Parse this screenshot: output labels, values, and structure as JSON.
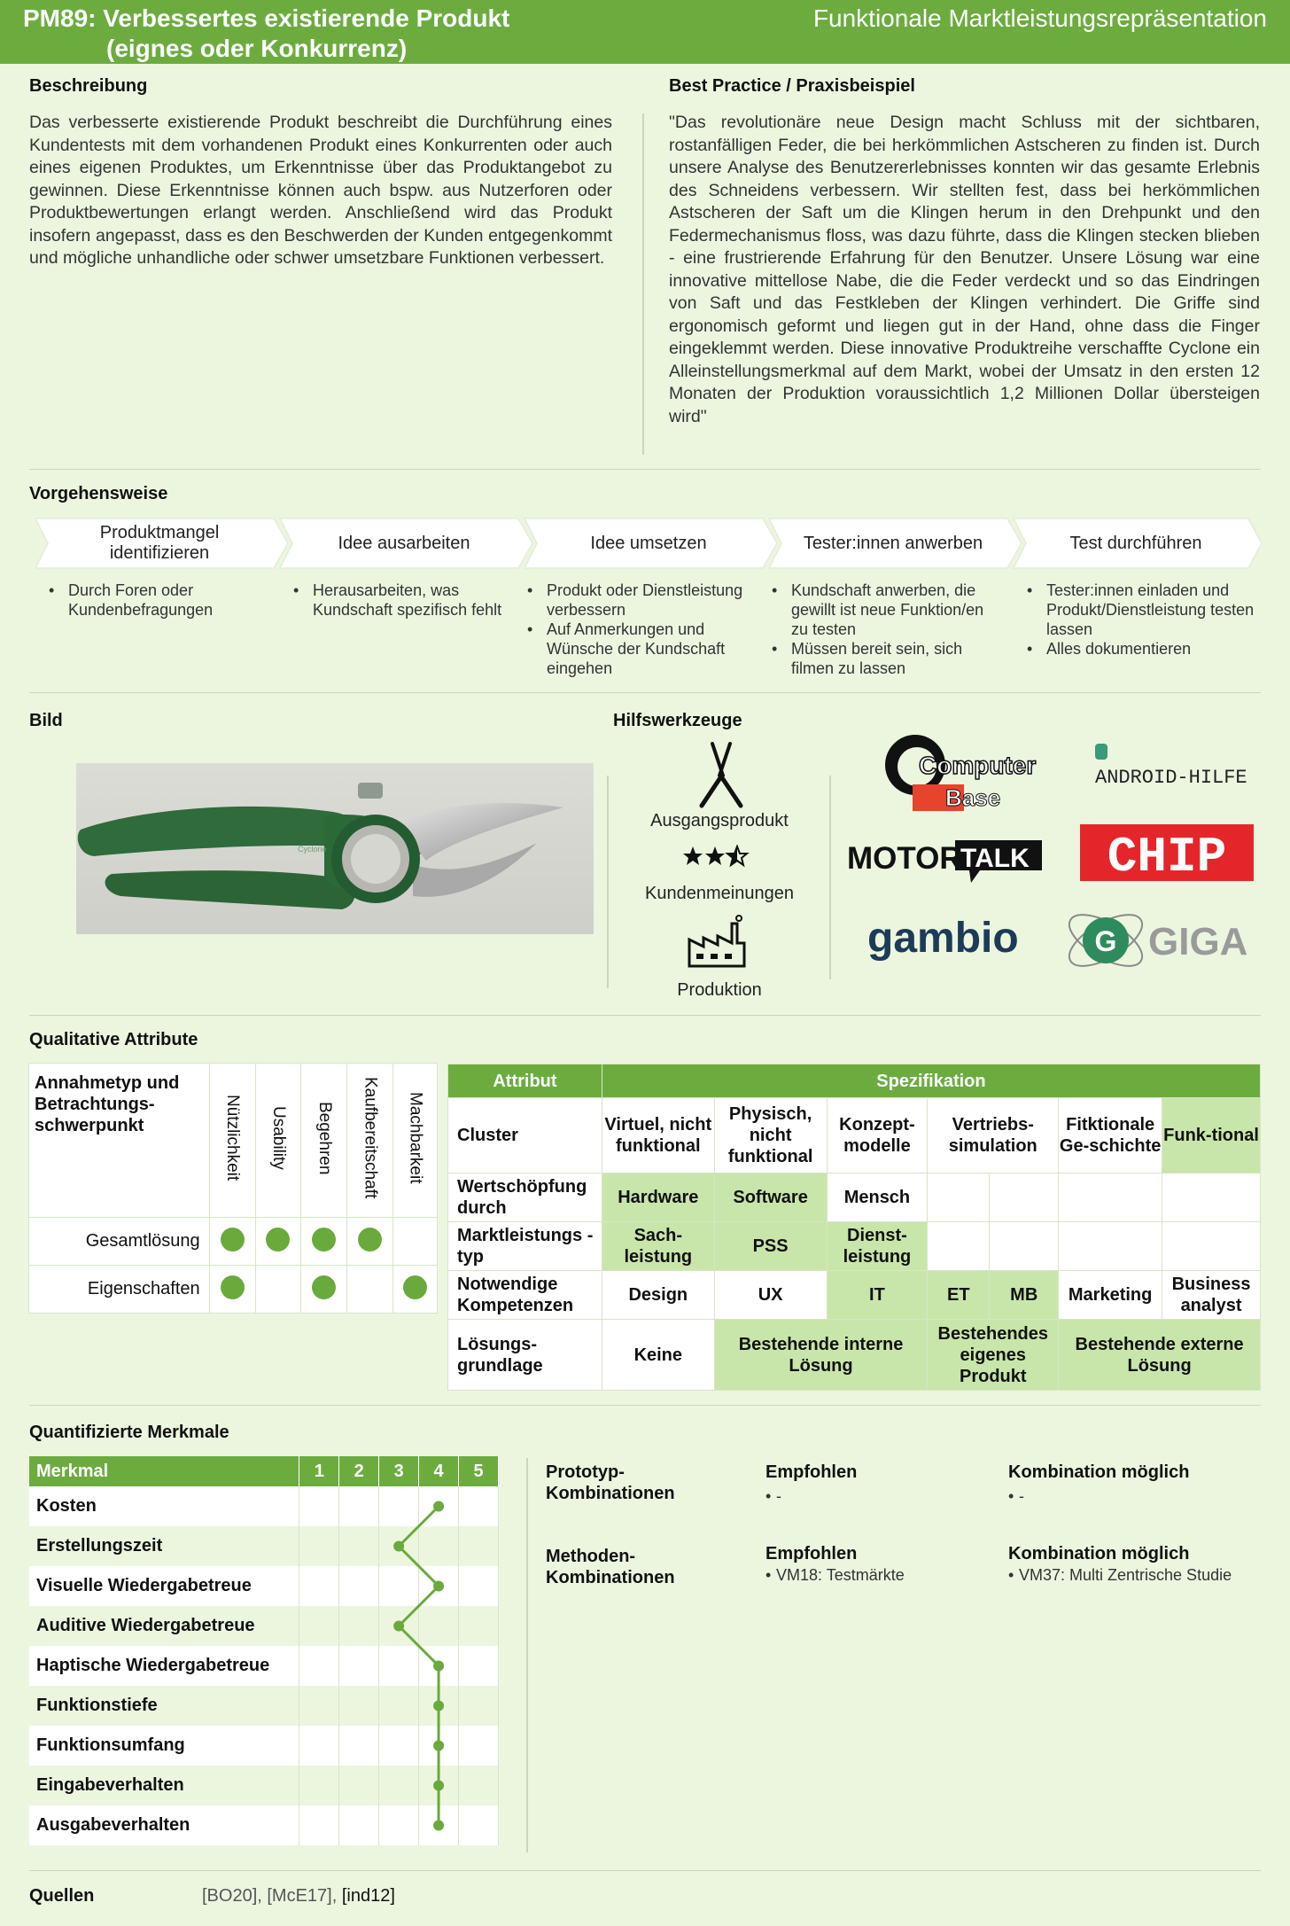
{
  "header": {
    "title": "PM89: Verbessertes existierende Produkt",
    "subtitle": "(eignes oder Konkurrenz)",
    "category": "Funktionale Marktleistungsrepräsentation"
  },
  "beschreibung": {
    "heading": "Beschreibung",
    "text": "Das verbesserte existierende Produkt beschreibt die Durchführung eines Kundentests mit dem vorhandenen Produkt eines Konkurrenten oder auch eines eigenen Produktes, um Erkenntnisse über das Produktangebot zu gewinnen. Diese Erkenntnisse können auch bspw. aus Nutzerforen oder Produktbewertungen erlangt werden. Anschließend wird das Produkt insofern angepasst, dass es den Beschwerden der Kunden entgegenkommt und mögliche unhandliche oder schwer umsetzbare Funktionen verbessert."
  },
  "best_practice": {
    "heading": "Best Practice / Praxisbeispiel",
    "text": "\"Das revolutionäre neue Design macht Schluss mit der sichtbaren, rostanfälligen Feder, die bei herkömmlichen Astscheren zu finden ist. Durch unsere Analyse des Benutzererlebnisses konnten wir das gesamte Erlebnis des Schneidens verbessern. Wir stellten fest, dass bei herkömmlichen Astscheren der Saft um die Klingen herum in den Drehpunkt und den Federmechanismus floss, was dazu führte, dass die Klingen stecken blieben - eine frustrierende Erfahrung für den Benutzer. Unsere Lösung war eine innovative mittellose Nabe, die die Feder verdeckt und so das Eindringen von Saft und das Festkleben der Klingen verhindert. Die Griffe sind ergonomisch geformt und liegen gut in der Hand, ohne dass die Finger eingeklemmt werden. Diese innovative Produktreihe verschaffte Cyclone ein Alleinstellungsmerkmal auf dem Markt, wobei der Umsatz in den ersten 12 Monaten der Produktion voraussichtlich 1,2 Millionen Dollar übersteigen wird\""
  },
  "vorgehensweise": {
    "heading": "Vorgehensweise",
    "steps": [
      {
        "title": "Produktmangel identifizieren",
        "bullets": [
          "Durch Foren oder Kundenbefragungen"
        ]
      },
      {
        "title": "Idee ausarbeiten",
        "bullets": [
          "Herausarbeiten, was Kundschaft spezifisch fehlt"
        ]
      },
      {
        "title": "Idee umsetzen",
        "bullets": [
          "Produkt oder Dienstleistung verbessern",
          "Auf Anmerkungen und Wünsche der Kundschaft eingehen"
        ]
      },
      {
        "title": "Tester:innen anwerben",
        "bullets": [
          "Kundschaft anwerben, die gewillt ist neue Funktion/en zu testen",
          "Müssen bereit sein, sich filmen zu lassen"
        ]
      },
      {
        "title": "Test durchführen",
        "bullets": [
          "Tester:innen einladen und Produkt/Dienstleistung testen lassen",
          "Alles dokumentieren"
        ]
      }
    ]
  },
  "bild": {
    "heading": "Bild",
    "logo_text": "Cyclone"
  },
  "hilfswerkzeuge": {
    "heading": "Hilfswerkzeuge",
    "items": [
      {
        "label": "Ausgangsprodukt",
        "icon": "pruning-shears-icon"
      },
      {
        "label": "Kundenmeinungen",
        "icon": "stars-rating-icon",
        "rating": 2.5
      },
      {
        "label": "Produktion",
        "icon": "factory-icon"
      }
    ],
    "logos": {
      "computerbase": [
        "Computer",
        "Base"
      ],
      "androidhilfe": "ANDROID-HILFE",
      "motortalk": [
        "MOTOR",
        "TALK"
      ],
      "chip": "CHIP",
      "gambio": "gambio",
      "giga": [
        "G",
        "GIGA"
      ]
    }
  },
  "qualitative": {
    "heading": "Qualitative Attribute",
    "corner": "Annahmetyp und Betrachtungs-schwerpunkt",
    "columns": [
      "Nützlichkeit",
      "Usability",
      "Begehren",
      "Kaufbereitschaft",
      "Machbarkeit"
    ],
    "rows": [
      {
        "label": "Gesamtlösung",
        "dots": [
          true,
          true,
          true,
          true,
          false
        ]
      },
      {
        "label": "Eigenschaften",
        "dots": [
          true,
          false,
          true,
          false,
          true
        ]
      }
    ]
  },
  "attribute": {
    "h_attr": "Attribut",
    "h_spec": "Spezifikation",
    "cluster": {
      "label": "Cluster",
      "items": [
        "Virtuel, nicht funktional",
        "Physisch, nicht funktional",
        "Konzept-modelle",
        "Vertriebs-simulation",
        "Fitktionale Ge-schichte",
        "Funk-tional"
      ]
    },
    "wertschoepfung": {
      "label": "Wertschöpfung durch",
      "items": [
        "Hardware",
        "Software",
        "Mensch"
      ]
    },
    "marktleistung": {
      "label": "Marktleistungs -typ",
      "items": [
        "Sach-leistung",
        "PSS",
        "Dienst-leistung"
      ]
    },
    "kompetenzen": {
      "label": "Notwendige Kompetenzen",
      "items": [
        "Design",
        "UX",
        "IT",
        "ET",
        "MB",
        "Marketing",
        "Business analyst"
      ]
    },
    "loesung": {
      "label": "Lösungs-grundlage",
      "items": [
        "Keine",
        "Bestehende interne Lösung",
        "Bestehendes eigenes Produkt",
        "Bestehende externe Lösung"
      ]
    }
  },
  "quantifiziert": {
    "heading": "Quantifizierte Merkmale",
    "col_label": "Merkmal",
    "scale": [
      "1",
      "2",
      "3",
      "4",
      "5"
    ],
    "rows": [
      {
        "label": "Kosten",
        "value": 4
      },
      {
        "label": "Erstellungszeit",
        "value": 3
      },
      {
        "label": "Visuelle  Wiedergabetreue",
        "value": 4
      },
      {
        "label": "Auditive Wiedergabetreue",
        "value": 3
      },
      {
        "label": "Haptische Wiedergabetreue",
        "value": 4
      },
      {
        "label": "Funktionstiefe",
        "value": 4
      },
      {
        "label": "Funktionsumfang",
        "value": 4
      },
      {
        "label": "Eingabeverhalten",
        "value": 4
      },
      {
        "label": "Ausgabeverhalten",
        "value": 4
      }
    ],
    "line_color": "#6aaa3c"
  },
  "kombinationen": {
    "prototyp": {
      "label": "Prototyp-Kombinationen",
      "empfohlen_h": "Empfohlen",
      "empfohlen": "-",
      "moeglich_h": "Kombination möglich",
      "moeglich": "-"
    },
    "methoden": {
      "label": "Methoden-Kombinationen",
      "empfohlen_h": "Empfohlen",
      "empfohlen": "VM18: Testmärkte",
      "moeglich_h": "Kombination möglich",
      "moeglich": "VM37: Multi Zentrische Studie"
    }
  },
  "quellen": {
    "heading": "Quellen",
    "refs": "[BO20], [McE17], ",
    "last": "[ind12]"
  },
  "colors": {
    "accent": "#6cac3f",
    "light": "#c8e6a9",
    "bg": "#ecf6df"
  }
}
